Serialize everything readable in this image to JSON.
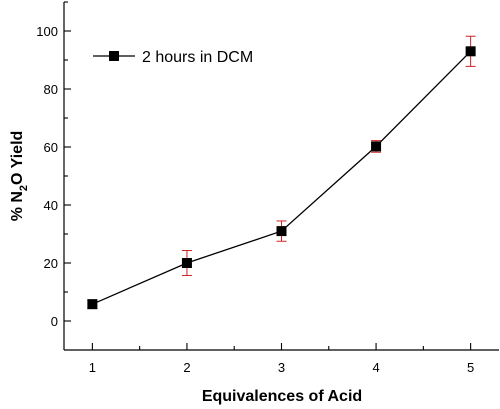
{
  "chart_data": {
    "type": "line",
    "title": "",
    "xlabel": "Equivalences of Acid",
    "ylabel_parts": {
      "prefix": "% N",
      "subscript": "2",
      "suffix": "O Yield"
    },
    "x": [
      1,
      2,
      3,
      4,
      5
    ],
    "x_ticks": [
      "1",
      "2",
      "3",
      "4",
      "5"
    ],
    "xlim": [
      0.7,
      5.3
    ],
    "ylim": [
      -10,
      110
    ],
    "y_ticks": [
      "0",
      "20",
      "40",
      "60",
      "80",
      "100"
    ],
    "grid": false,
    "legend_position": "top-left",
    "series": [
      {
        "name": "2 hours in DCM",
        "values": [
          5.8,
          20.0,
          31.0,
          60.2,
          93.0
        ],
        "error": [
          1.5,
          4.3,
          3.5,
          2.0,
          5.2
        ],
        "line_color": "#000000",
        "marker": "square",
        "error_color": "#cc2222"
      }
    ]
  }
}
